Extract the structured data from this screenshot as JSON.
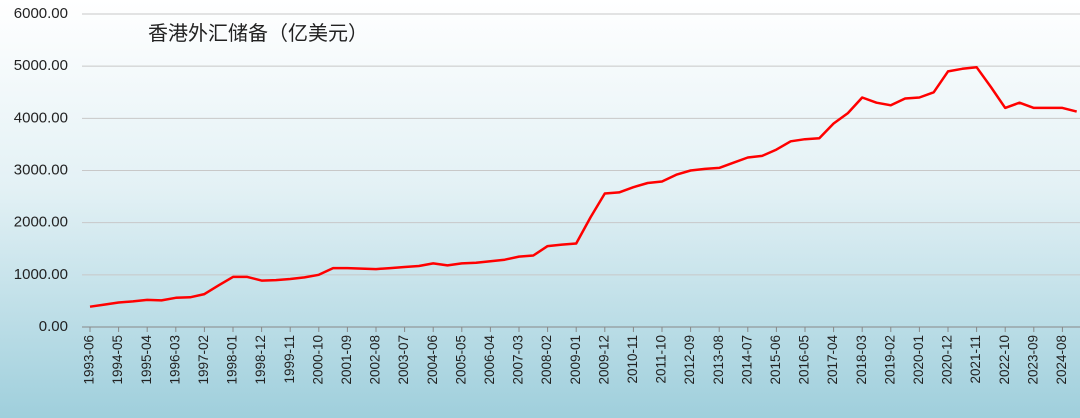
{
  "chart_data": {
    "type": "line",
    "title": "香港外汇储备（亿美元）",
    "categories": [
      "1993-06",
      null,
      "1994-05",
      null,
      "1995-04",
      null,
      "1996-03",
      null,
      "1997-02",
      null,
      "1998-01",
      null,
      "1998-12",
      null,
      "1999-11",
      null,
      "2000-10",
      null,
      "2001-09",
      null,
      "2002-08",
      null,
      "2003-07",
      null,
      "2004-06",
      null,
      "2005-05",
      null,
      "2006-04",
      null,
      "2007-03",
      null,
      "2008-02",
      null,
      "2009-01",
      null,
      "2009-12",
      null,
      "2010-11",
      null,
      "2011-10",
      null,
      "2012-09",
      null,
      "2013-08",
      null,
      "2014-07",
      null,
      "2015-06",
      null,
      "2016-05",
      null,
      "2017-04",
      null,
      "2018-03",
      null,
      "2019-02",
      null,
      "2020-01",
      null,
      "2020-12",
      null,
      "2021-11",
      null,
      "2022-10",
      null,
      "2023-09",
      null,
      "2024-08",
      null
    ],
    "series": [
      {
        "name": "香港外汇储备",
        "color": "#ff0000",
        "values": [
          390,
          430,
          470,
          490,
          520,
          510,
          560,
          570,
          630,
          800,
          960,
          960,
          890,
          900,
          920,
          950,
          1000,
          1130,
          1130,
          1120,
          1110,
          1130,
          1150,
          1170,
          1220,
          1180,
          1220,
          1230,
          1260,
          1290,
          1350,
          1370,
          1550,
          1580,
          1600,
          2100,
          2560,
          2580,
          2680,
          2760,
          2790,
          2920,
          3000,
          3030,
          3050,
          3150,
          3250,
          3280,
          3400,
          3560,
          3600,
          3620,
          3900,
          4100,
          4400,
          4300,
          4250,
          4380,
          4400,
          4500,
          4900,
          4950,
          4980,
          4600,
          4200,
          4300,
          4200,
          4200,
          4200,
          4130
        ]
      }
    ],
    "ylim": [
      0,
      6000
    ],
    "yticks": [
      {
        "value": 0,
        "label": "0.00"
      },
      {
        "value": 1000,
        "label": "1000.00"
      },
      {
        "value": 2000,
        "label": "2000.00"
      },
      {
        "value": 3000,
        "label": "3000.00"
      },
      {
        "value": 4000,
        "label": "4000.00"
      },
      {
        "value": 5000,
        "label": "5000.00"
      },
      {
        "value": 6000,
        "label": "6000.00"
      }
    ],
    "grid": true
  }
}
